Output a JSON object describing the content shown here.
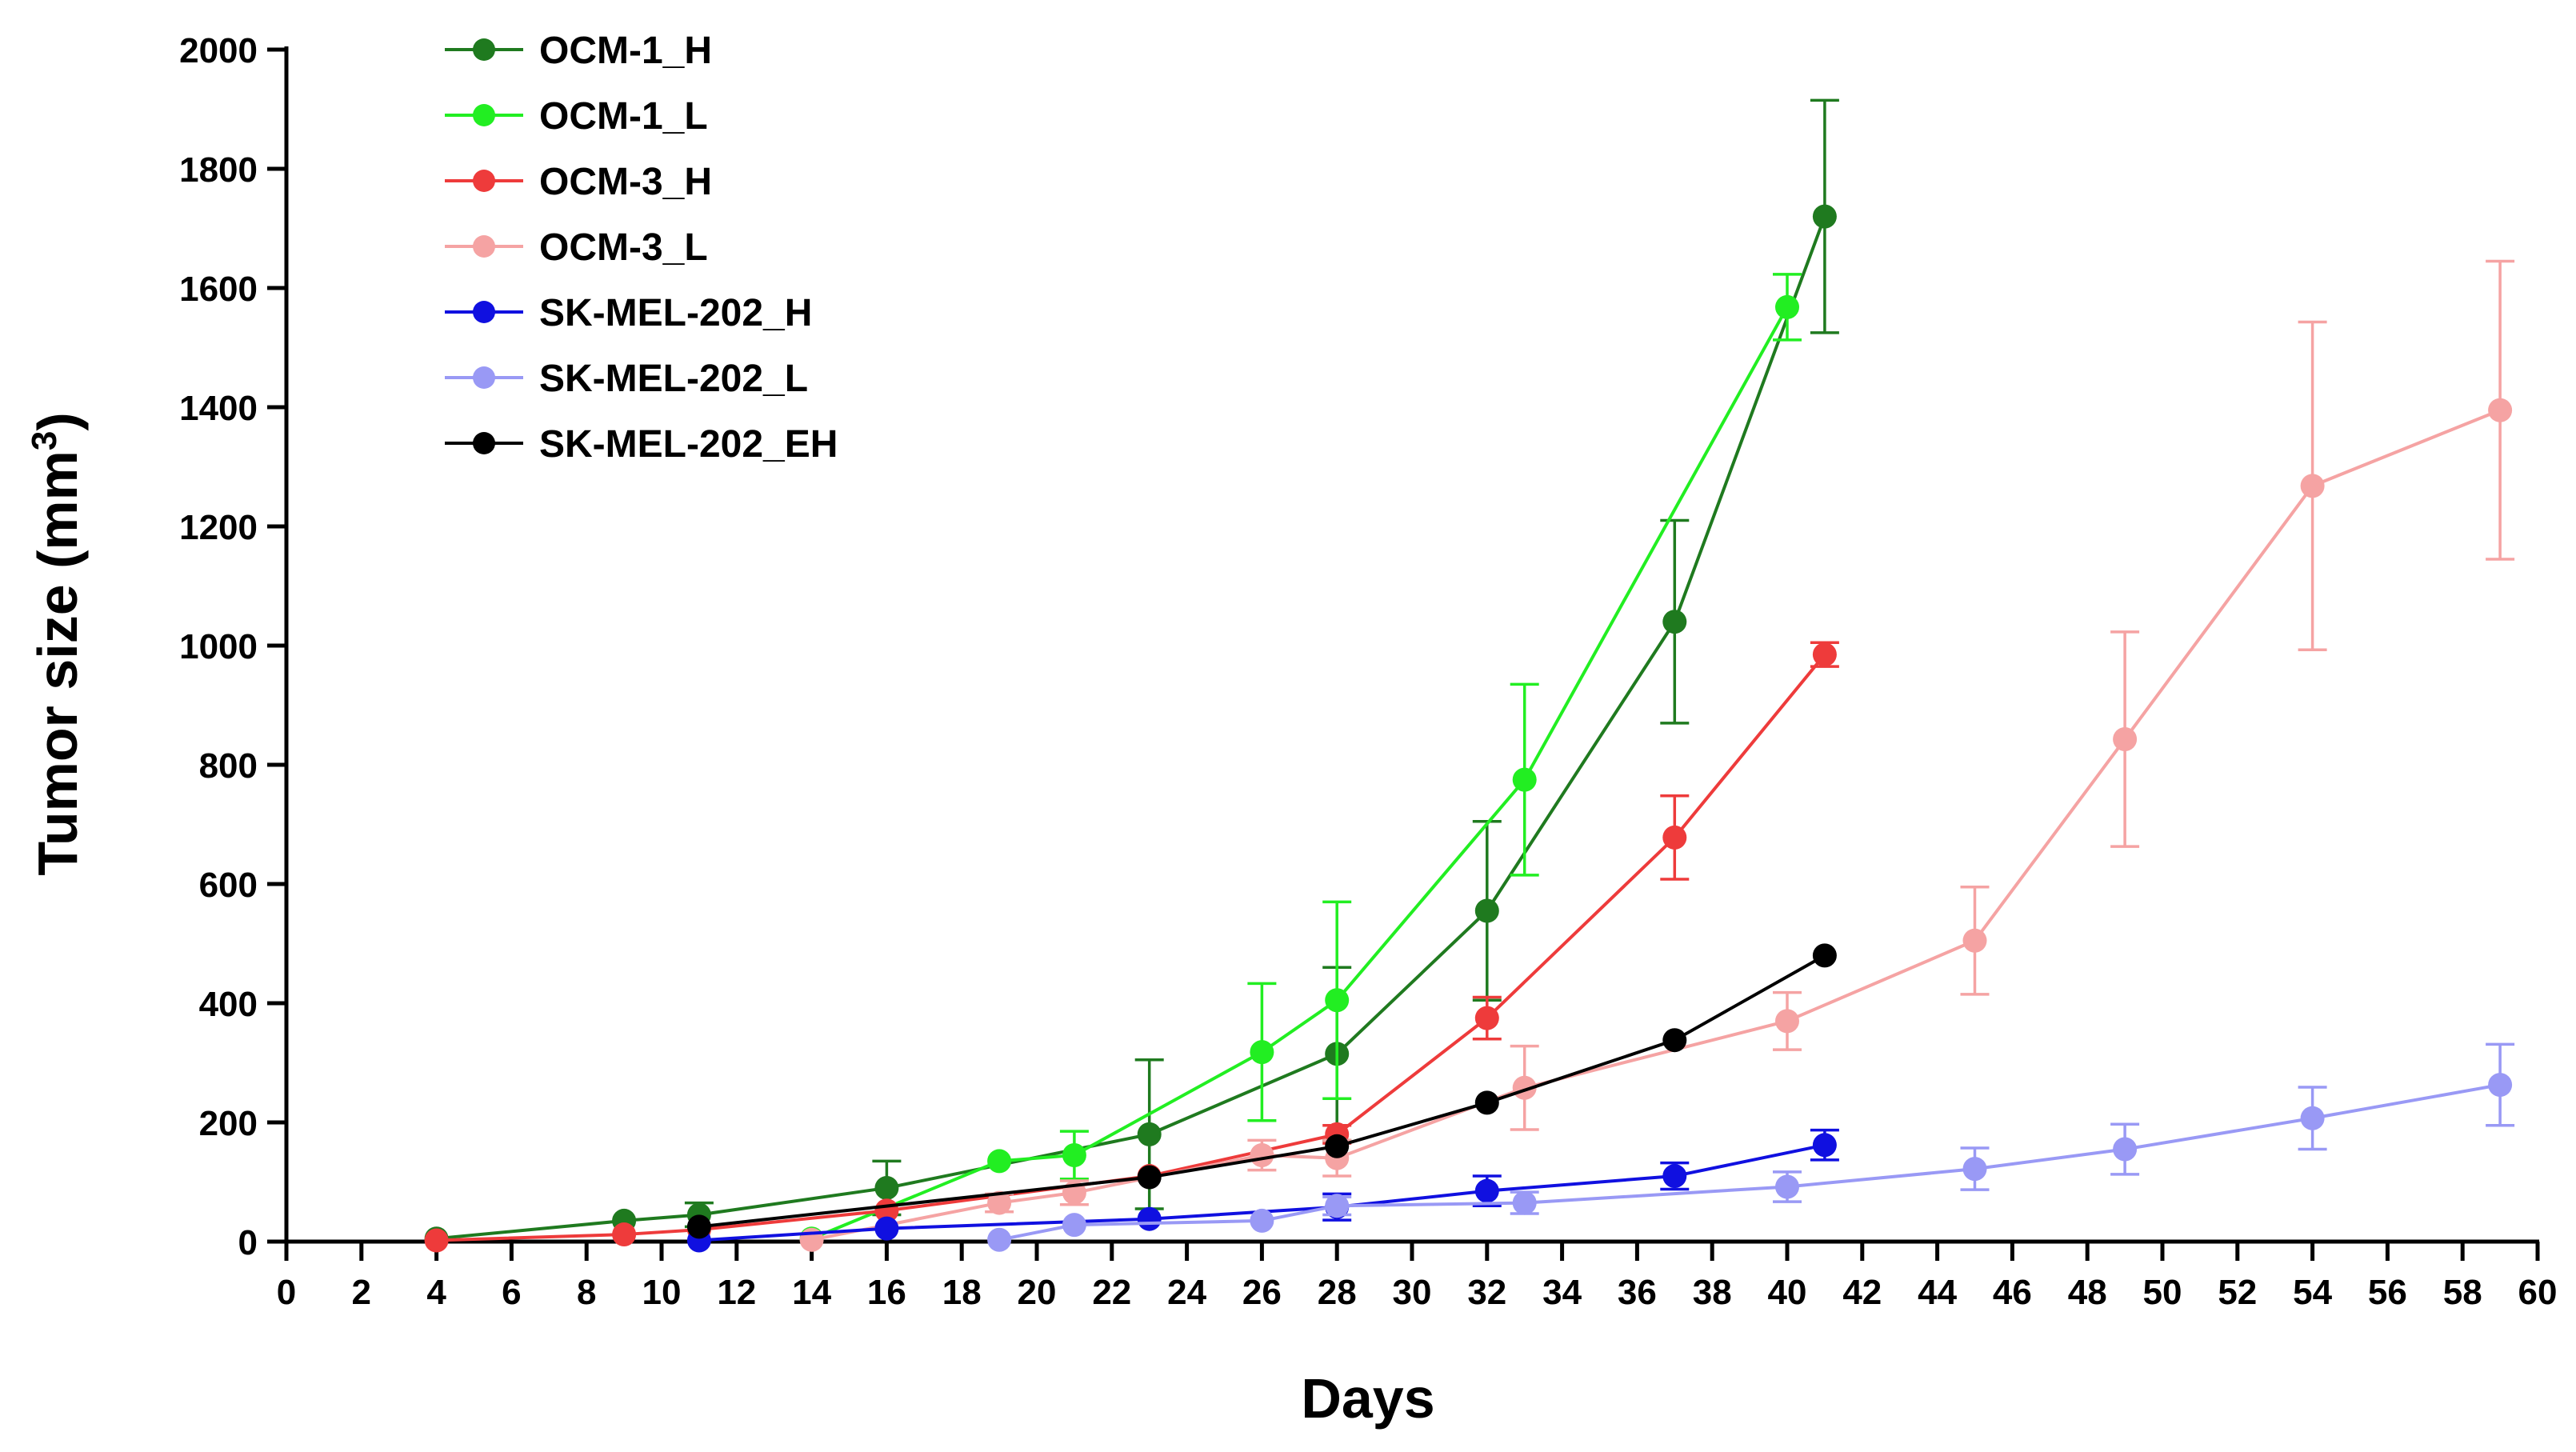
{
  "chart_data": {
    "type": "line",
    "xlabel": "Days",
    "ylabel": {
      "text": "Tumor size (mm",
      "superscript": "3",
      "suffix": ")"
    },
    "xlim": [
      0,
      60
    ],
    "ylim": [
      0,
      2000
    ],
    "xticks": [
      0,
      2,
      4,
      6,
      8,
      10,
      12,
      14,
      16,
      18,
      20,
      22,
      24,
      26,
      28,
      30,
      32,
      34,
      36,
      38,
      40,
      42,
      44,
      46,
      48,
      50,
      52,
      54,
      56,
      58,
      60
    ],
    "yticks": [
      0,
      200,
      400,
      600,
      800,
      1000,
      1200,
      1400,
      1600,
      1800,
      2000
    ],
    "grid": false,
    "legend_position": "top-left",
    "series": [
      {
        "name": "OCM-1_H",
        "color": "#1f7a1f",
        "points": [
          {
            "x": 4,
            "y": 5
          },
          {
            "x": 9,
            "y": 35
          },
          {
            "x": 11,
            "y": 45,
            "err": 20
          },
          {
            "x": 16,
            "y": 90,
            "err": 45
          },
          {
            "x": 23,
            "y": 180,
            "err": 125
          },
          {
            "x": 28,
            "y": 315,
            "err": 145
          },
          {
            "x": 32,
            "y": 555,
            "err": 150
          },
          {
            "x": 37,
            "y": 1040,
            "err": 170
          },
          {
            "x": 41,
            "y": 1720,
            "err": 195
          }
        ]
      },
      {
        "name": "OCM-1_L",
        "color": "#22ee22",
        "points": [
          {
            "x": 14,
            "y": 5
          },
          {
            "x": 19,
            "y": 135
          },
          {
            "x": 21,
            "y": 145,
            "err": 40
          },
          {
            "x": 26,
            "y": 318,
            "err": 115
          },
          {
            "x": 28,
            "y": 405,
            "err": 165
          },
          {
            "x": 33,
            "y": 775,
            "err": 160
          },
          {
            "x": 40,
            "y": 1568,
            "err": 55
          }
        ]
      },
      {
        "name": "OCM-3_H",
        "color": "#ee3b3b",
        "points": [
          {
            "x": 4,
            "y": 2
          },
          {
            "x": 9,
            "y": 12
          },
          {
            "x": 11,
            "y": 20
          },
          {
            "x": 16,
            "y": 52
          },
          {
            "x": 23,
            "y": 110
          },
          {
            "x": 28,
            "y": 180,
            "err": 15
          },
          {
            "x": 32,
            "y": 375,
            "err": 35
          },
          {
            "x": 37,
            "y": 678,
            "err": 70
          },
          {
            "x": 41,
            "y": 985,
            "err": 20
          }
        ]
      },
      {
        "name": "OCM-3_L",
        "color": "#f5a3a3",
        "points": [
          {
            "x": 14,
            "y": 3
          },
          {
            "x": 19,
            "y": 65,
            "err": 15
          },
          {
            "x": 21,
            "y": 82,
            "err": 20
          },
          {
            "x": 26,
            "y": 145,
            "err": 25
          },
          {
            "x": 28,
            "y": 140,
            "err": 30
          },
          {
            "x": 33,
            "y": 258,
            "err": 70
          },
          {
            "x": 40,
            "y": 370,
            "err": 48
          },
          {
            "x": 45,
            "y": 505,
            "err": 90
          },
          {
            "x": 49,
            "y": 843,
            "err": 180
          },
          {
            "x": 54,
            "y": 1268,
            "err": 275
          },
          {
            "x": 59,
            "y": 1395,
            "err": 250
          }
        ]
      },
      {
        "name": "SK-MEL-202_H",
        "color": "#1010e0",
        "points": [
          {
            "x": 11,
            "y": 2
          },
          {
            "x": 16,
            "y": 22
          },
          {
            "x": 23,
            "y": 38
          },
          {
            "x": 28,
            "y": 58,
            "err": 22
          },
          {
            "x": 32,
            "y": 85,
            "err": 25
          },
          {
            "x": 37,
            "y": 110,
            "err": 22
          },
          {
            "x": 41,
            "y": 162,
            "err": 25
          }
        ]
      },
      {
        "name": "SK-MEL-202_L",
        "color": "#9999f5",
        "points": [
          {
            "x": 19,
            "y": 3
          },
          {
            "x": 21,
            "y": 28
          },
          {
            "x": 26,
            "y": 35
          },
          {
            "x": 28,
            "y": 60,
            "err": 15
          },
          {
            "x": 33,
            "y": 65,
            "err": 18
          },
          {
            "x": 40,
            "y": 92,
            "err": 25
          },
          {
            "x": 45,
            "y": 122,
            "err": 35
          },
          {
            "x": 49,
            "y": 155,
            "err": 42
          },
          {
            "x": 54,
            "y": 207,
            "err": 52
          },
          {
            "x": 59,
            "y": 263,
            "err": 68
          }
        ]
      },
      {
        "name": "SK-MEL-202_EH",
        "color": "#000000",
        "points": [
          {
            "x": 11,
            "y": 25
          },
          {
            "x": 23,
            "y": 108
          },
          {
            "x": 28,
            "y": 160
          },
          {
            "x": 32,
            "y": 233
          },
          {
            "x": 37,
            "y": 338
          },
          {
            "x": 41,
            "y": 480
          }
        ]
      }
    ]
  }
}
